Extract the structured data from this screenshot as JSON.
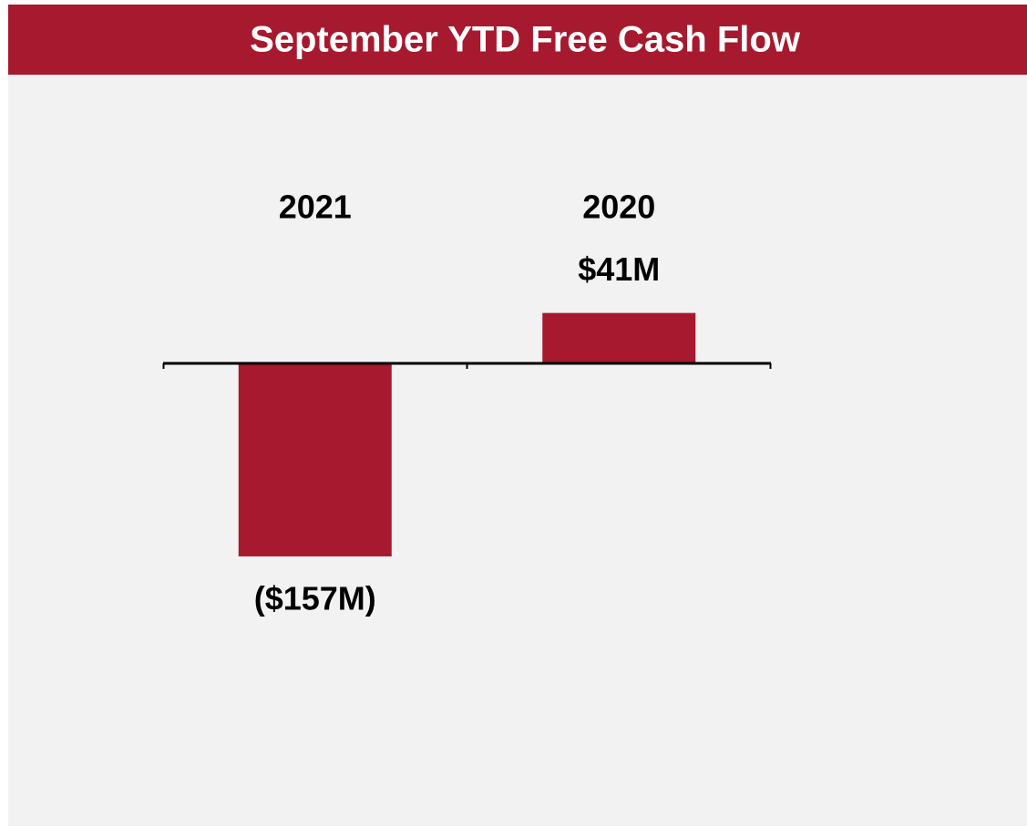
{
  "chart_data": {
    "type": "bar",
    "title": "September YTD Free Cash Flow",
    "categories": [
      "2021",
      "2020"
    ],
    "values": [
      -157,
      41
    ],
    "value_labels": [
      "($157M)",
      "$41M"
    ],
    "color": "#a6192e"
  }
}
